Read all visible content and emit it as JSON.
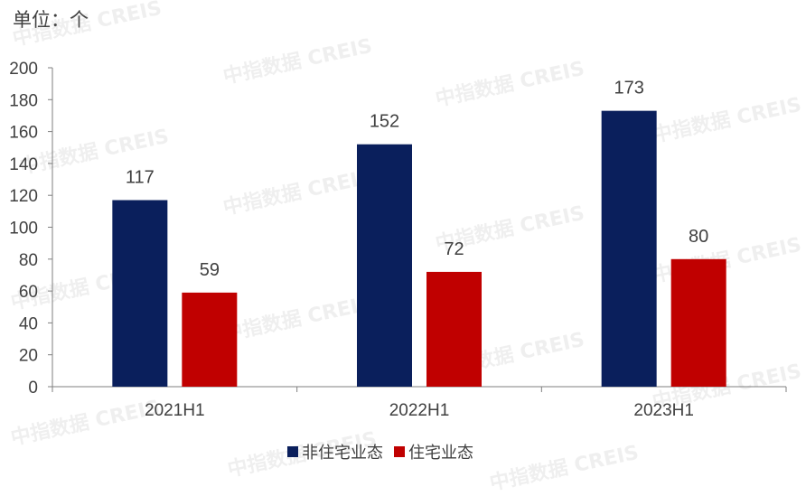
{
  "unit_label": "单位：个",
  "watermark_text": "中指数据 CREIS",
  "colors": {
    "non_residential": "#0a1f5c",
    "residential": "#c00000",
    "axis": "#7f7f7f"
  },
  "chart_data": {
    "type": "bar",
    "categories": [
      "2021H1",
      "2022H1",
      "2023H1"
    ],
    "series": [
      {
        "name": "非住宅业态",
        "values": [
          117,
          152,
          173
        ]
      },
      {
        "name": "住宅业态",
        "values": [
          59,
          72,
          80
        ]
      }
    ],
    "ylim": [
      0,
      200
    ],
    "ytick_step": 20,
    "yticks": [
      "0",
      "20",
      "40",
      "60",
      "80",
      "100",
      "120",
      "140",
      "160",
      "180",
      "200"
    ],
    "legend_position": "bottom",
    "grid": false
  }
}
